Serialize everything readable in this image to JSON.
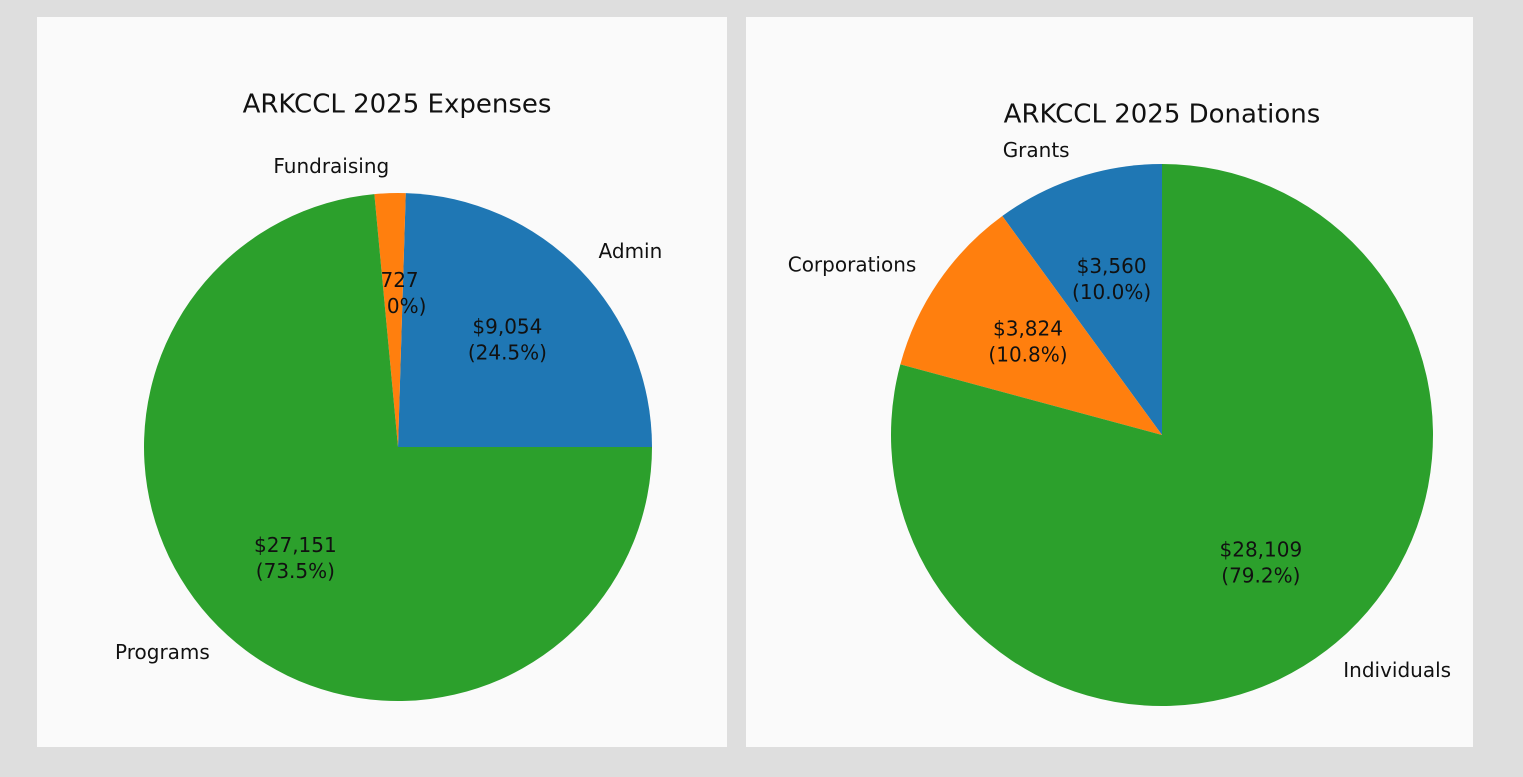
{
  "chart_data": [
    {
      "type": "pie",
      "title": "ARKCCL 2025 Expenses",
      "categories": [
        "Admin",
        "Fundraising",
        "Programs"
      ],
      "values": [
        9054,
        727,
        27151
      ],
      "value_labels": [
        "$9,054",
        "$727",
        "$27,151"
      ],
      "percent_labels": [
        "(24.5%)",
        "(2.0%)",
        "(73.5%)"
      ],
      "colors": [
        "#1f77b4",
        "#ff7f0e",
        "#2ca02c"
      ],
      "startangle": 0
    },
    {
      "type": "pie",
      "title": "ARKCCL 2025 Donations",
      "categories": [
        "Grants",
        "Corporations",
        "Individuals"
      ],
      "values": [
        3560,
        3824,
        28109
      ],
      "value_labels": [
        "$3,560",
        "$3,824",
        "$28,109"
      ],
      "percent_labels": [
        "(10.0%)",
        "(10.8%)",
        "(79.2%)"
      ],
      "colors": [
        "#1f77b4",
        "#ff7f0e",
        "#2ca02c"
      ],
      "startangle": 90
    }
  ]
}
